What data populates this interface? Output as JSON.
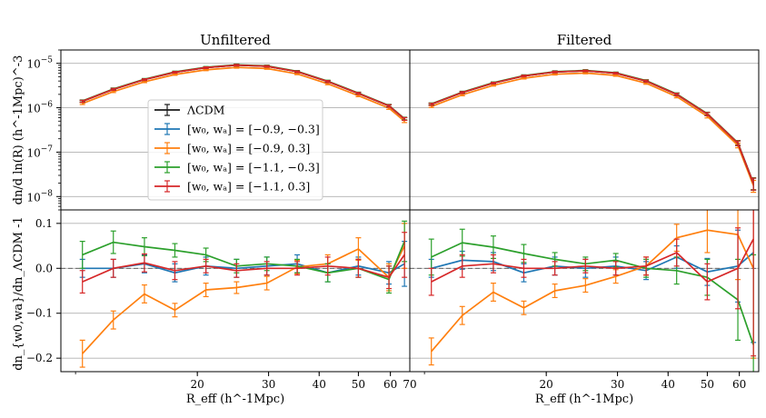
{
  "chart_data": {
    "type": "line",
    "xscale": "log",
    "xlim": [
      9.2,
      67
    ],
    "x": [
      10.4,
      12.4,
      14.8,
      17.6,
      21,
      25,
      29.7,
      35.3,
      42,
      50,
      59.5,
      65
    ],
    "x_ticks": [
      20,
      30,
      40,
      50,
      60,
      70
    ],
    "x_tick_labels": [
      "20",
      "30",
      "40",
      "50",
      "60",
      "70"
    ],
    "xlabel": "R_eff (h^-1Mpc)",
    "top_ylabel": "dn/d ln(R) (h^-1Mpc)^-3",
    "bottom_ylabel": "dn_{w0,wa}/dn_ΛCDM -1",
    "top_yscale": "log",
    "top_ylim": [
      5e-09,
      2e-05
    ],
    "top_y_ticks": [
      1e-08,
      1e-07,
      1e-06,
      1e-05
    ],
    "top_y_tick_labels": [
      [
        "10",
        "−8"
      ],
      [
        "10",
        "−7"
      ],
      [
        "10",
        "−6"
      ],
      [
        "10",
        "−5"
      ]
    ],
    "bottom_ylim": [
      -0.23,
      0.13
    ],
    "bottom_y_ticks": [
      -0.2,
      -0.1,
      0.0,
      0.1
    ],
    "bottom_y_tick_labels": [
      "−0.2",
      "−0.1",
      "0.0",
      "0.1"
    ],
    "legend_position": "center-left",
    "series": [
      {
        "name": "ΛCDM",
        "label_math": "ΛCDM",
        "color": "#1a1a1a"
      },
      {
        "name": "[w0, wa] = [-0.9, -0.3]",
        "label_math": "[w₀, wₐ] = [−0.9, −0.3]",
        "color": "#1f77b4"
      },
      {
        "name": "[w0, wa] = [-0.9, 0.3]",
        "label_math": "[w₀, wₐ] = [−0.9, 0.3]",
        "color": "#ff7f0e"
      },
      {
        "name": "[w0, wa] = [-1.1, -0.3]",
        "label_math": "[w₀, wₐ] = [−1.1, −0.3]",
        "color": "#2ca02c"
      },
      {
        "name": "[w0, wa] = [-1.1, 0.3]",
        "label_math": "[w₀, wₐ] = [−1.1, 0.3]",
        "color": "#d62728"
      }
    ],
    "panels": [
      {
        "title": "Unfiltered",
        "top": {
          "lcdm": [
            1.4e-06,
            2.6e-06,
            4.3e-06,
            6.3e-06,
            8e-06,
            9.1e-06,
            8.6e-06,
            6.5e-06,
            3.9e-06,
            2.1e-06,
            1.1e-06,
            5.6e-07
          ],
          "lcdm_err": [
            0.05,
            0.05,
            0.04,
            0.04,
            0.04,
            0.04,
            0.04,
            0.04,
            0.05,
            0.05,
            0.06,
            0.07
          ]
        },
        "bottom": {
          "[w0, wa] = [-0.9, -0.3]": {
            "y": [
              0.0,
              0.0,
              0.01,
              -0.01,
              0.005,
              0.0,
              0.005,
              0.01,
              -0.01,
              0.005,
              -0.01,
              0.01
            ],
            "err": [
              0.02,
              0.02,
              0.02,
              0.02,
              0.02,
              0.02,
              0.02,
              0.02,
              0.02,
              0.02,
              0.025,
              0.05
            ]
          },
          "[w0, wa] = [-0.9, 0.3]": {
            "y": [
              -0.19,
              -0.115,
              -0.057,
              -0.093,
              -0.048,
              -0.043,
              -0.033,
              0.003,
              0.01,
              0.043,
              -0.02,
              0.05
            ],
            "err": [
              0.03,
              0.02,
              0.02,
              0.015,
              0.015,
              0.013,
              0.015,
              0.015,
              0.02,
              0.025,
              0.03,
              0.05
            ]
          },
          "[w0, wa] = [-1.1, -0.3]": {
            "y": [
              0.03,
              0.058,
              0.048,
              0.04,
              0.03,
              0.005,
              0.01,
              0.005,
              -0.01,
              0.0,
              -0.025,
              0.06
            ],
            "err": [
              0.03,
              0.025,
              0.02,
              0.015,
              0.015,
              0.015,
              0.015,
              0.015,
              0.02,
              0.02,
              0.03,
              0.045
            ]
          },
          "[w0, wa] = [-1.1, 0.3]": {
            "y": [
              -0.03,
              0.0,
              0.012,
              -0.005,
              0.005,
              -0.005,
              0.0,
              0.0,
              0.005,
              0.0,
              -0.02,
              0.03
            ],
            "err": [
              0.025,
              0.02,
              0.02,
              0.02,
              0.015,
              0.015,
              0.015,
              0.015,
              0.02,
              0.02,
              0.025,
              0.05
            ]
          }
        }
      },
      {
        "title": "Filtered",
        "top": {
          "lcdm": [
            1.2e-06,
            2.2e-06,
            3.6e-06,
            5.2e-06,
            6.4e-06,
            6.8e-06,
            6e-06,
            4e-06,
            2e-06,
            7.2e-07,
            1.6e-07,
            2e-08
          ],
          "lcdm_err": [
            0.05,
            0.05,
            0.04,
            0.04,
            0.04,
            0.04,
            0.04,
            0.05,
            0.06,
            0.08,
            0.12,
            0.3
          ]
        },
        "bottom": {
          "[w0, wa] = [-0.9, -0.3]": {
            "y": [
              0.0,
              0.018,
              0.015,
              -0.01,
              0.005,
              0.0,
              0.005,
              -0.005,
              0.025,
              -0.008,
              0.005,
              0.035
            ],
            "err": [
              0.02,
              0.02,
              0.02,
              0.02,
              0.02,
              0.02,
              0.02,
              0.02,
              0.025,
              0.03,
              0.08,
              0.2
            ]
          },
          "[w0, wa] = [-0.9, 0.3]": {
            "y": [
              -0.185,
              -0.105,
              -0.053,
              -0.088,
              -0.05,
              -0.038,
              -0.018,
              0.005,
              0.068,
              0.085,
              0.075,
              0.0
            ],
            "err": [
              0.03,
              0.02,
              0.02,
              0.015,
              0.015,
              0.015,
              0.015,
              0.02,
              0.03,
              0.05,
              0.1,
              0.2
            ]
          },
          "[w0, wa] = [-1.1, -0.3]": {
            "y": [
              0.025,
              0.057,
              0.047,
              0.033,
              0.02,
              0.01,
              0.018,
              0.0,
              -0.005,
              -0.02,
              -0.07,
              -0.17
            ],
            "err": [
              0.04,
              0.03,
              0.025,
              0.02,
              0.015,
              0.015,
              0.015,
              0.02,
              0.03,
              0.04,
              0.09,
              0.2
            ]
          },
          "[w0, wa] = [-1.1, 0.3]": {
            "y": [
              -0.03,
              0.005,
              0.01,
              0.0,
              0.0,
              0.005,
              0.0,
              0.005,
              0.035,
              -0.03,
              0.0,
              0.065
            ],
            "err": [
              0.03,
              0.025,
              0.02,
              0.02,
              0.015,
              0.015,
              0.015,
              0.02,
              0.03,
              0.04,
              0.09,
              0.26
            ]
          }
        }
      }
    ]
  }
}
